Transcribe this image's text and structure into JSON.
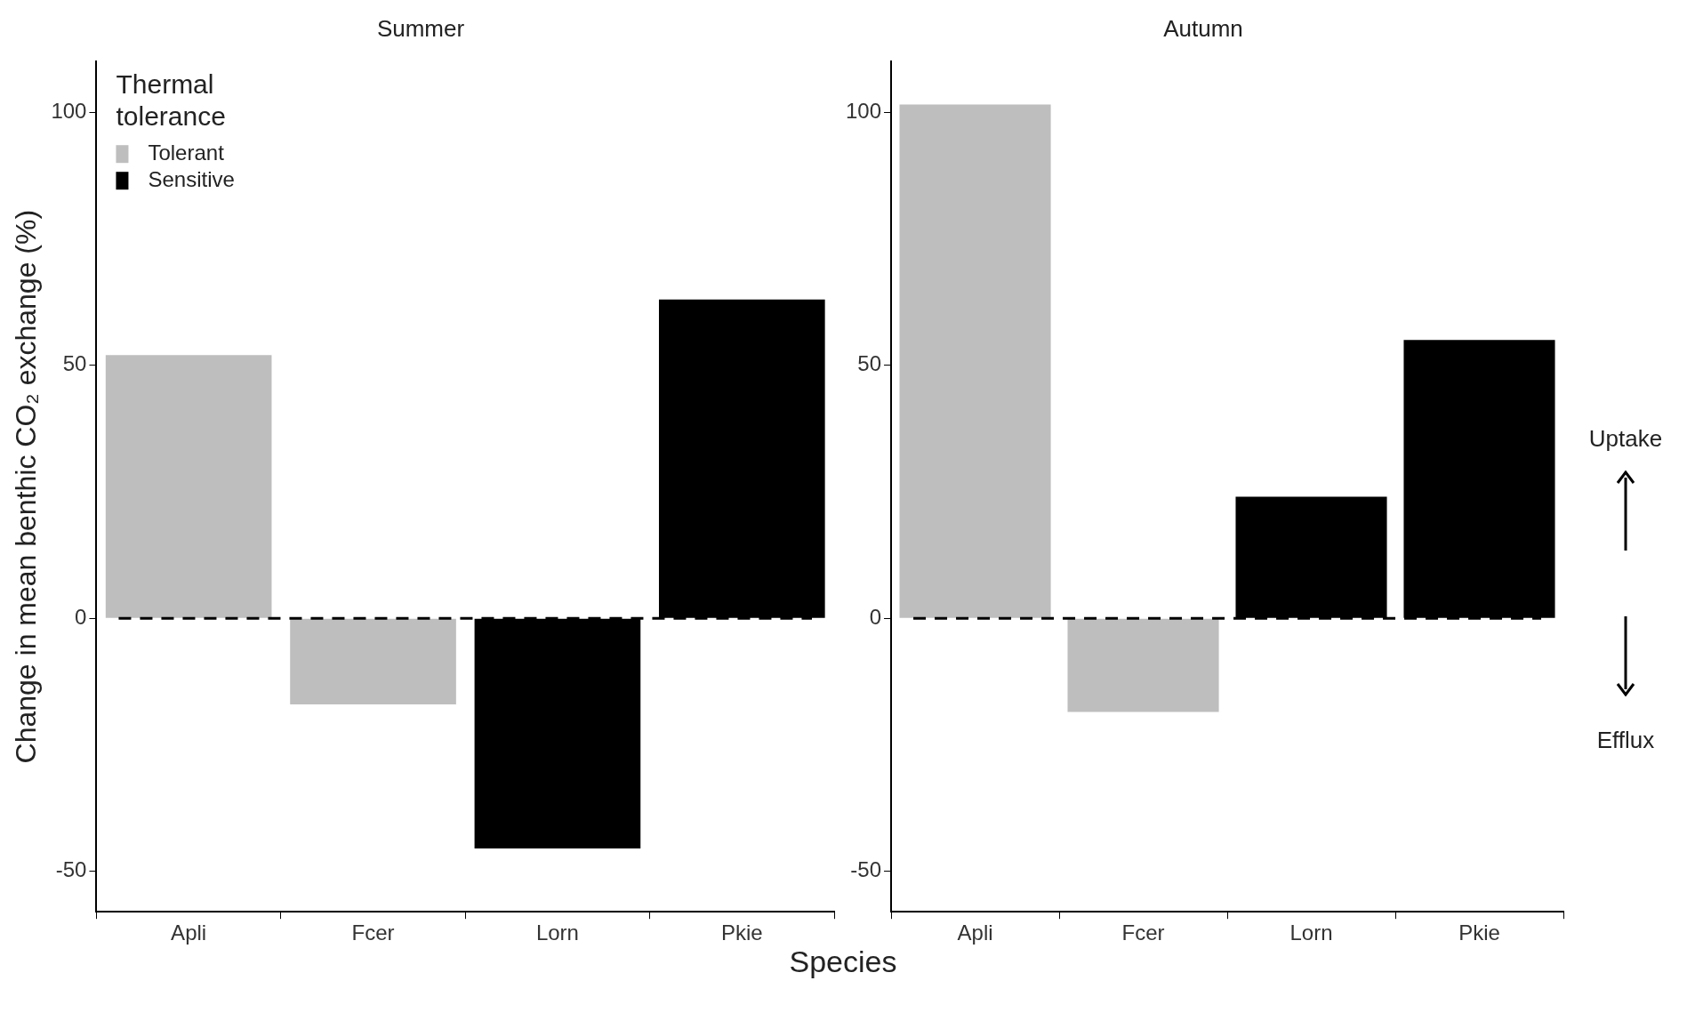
{
  "chart_data": [
    {
      "type": "bar",
      "title": "Summer",
      "xlabel": "Species",
      "ylabel": "Change in mean benthic CO₂ exchange (%)",
      "legend_title": "Thermal tolerance",
      "legend": "top left",
      "grid": false,
      "categories": [
        "Apli",
        "Fcer",
        "Lorn",
        "Pkie"
      ],
      "ylim": [
        -58,
        110
      ],
      "yticks": [
        -50,
        0,
        50,
        100
      ],
      "series": [
        {
          "name": "Tolerant",
          "color": "#bebebe",
          "values": [
            52,
            -17,
            null,
            null
          ]
        },
        {
          "name": "Sensitive",
          "color": "#000000",
          "values": [
            null,
            null,
            -45.5,
            63
          ]
        }
      ],
      "ref_lines": [
        {
          "axis": "y",
          "value": 0,
          "line_style": "dashed",
          "color": "#000000"
        }
      ]
    },
    {
      "type": "bar",
      "title": "Autumn",
      "grid": false,
      "categories": [
        "Apli",
        "Fcer",
        "Lorn",
        "Pkie"
      ],
      "ylim": [
        -58,
        110
      ],
      "yticks": [
        -50,
        0,
        50,
        100
      ],
      "series": [
        {
          "color": "#bebebe",
          "values": [
            101.5,
            -18.5,
            null,
            null
          ]
        },
        {
          "color": "#000000",
          "values": [
            null,
            null,
            24,
            55
          ]
        }
      ],
      "ref_lines": [
        {
          "axis": "y",
          "value": 0,
          "line_style": "dashed",
          "color": "#000000"
        }
      ],
      "annotations": [
        "Uptake",
        "Efflux"
      ]
    }
  ]
}
